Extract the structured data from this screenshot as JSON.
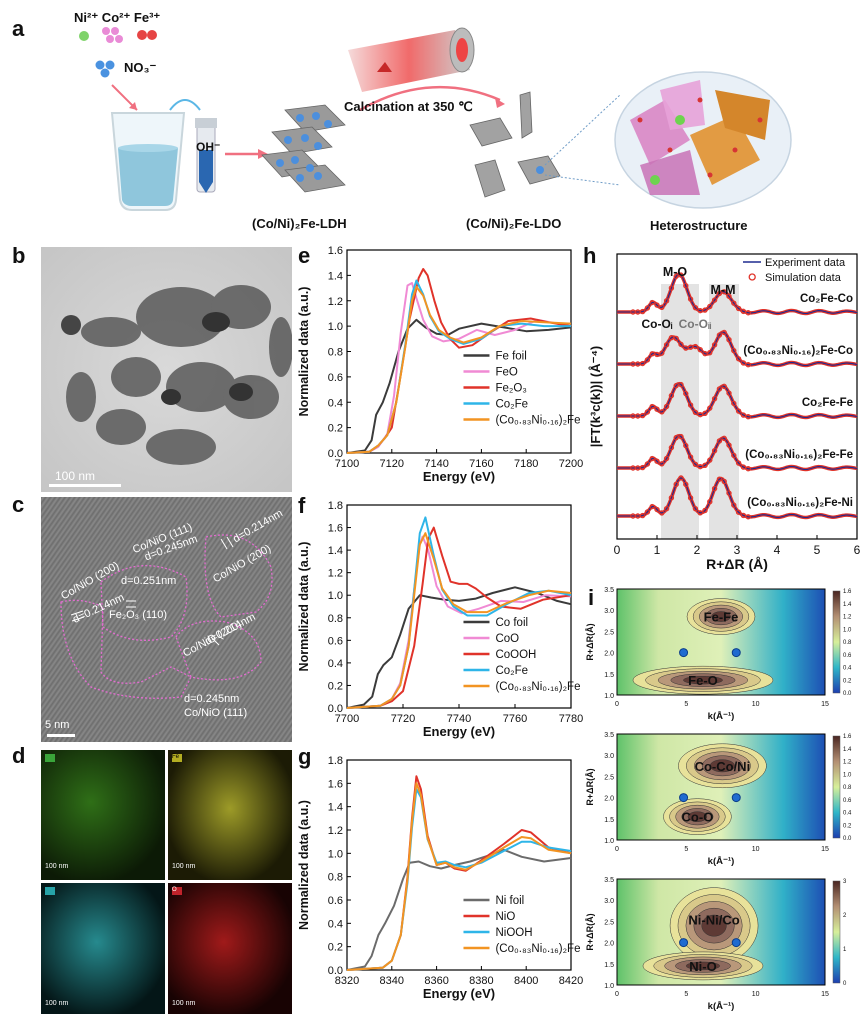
{
  "panel_a": {
    "label": "a",
    "ions_top": "Ni²⁺ Co²⁺ Fe³⁺",
    "nitrate": "NO₃⁻",
    "hydroxide": "OH⁻",
    "calcination": "Calcination at 350 ℃",
    "ldh": "(Co/Ni)₂Fe-LDH",
    "ldo": "(Co/Ni)₂Fe-LDO",
    "hetero": "Heterostructure"
  },
  "panel_b": {
    "label": "b",
    "scale": "100 nm"
  },
  "panel_c": {
    "label": "c",
    "scale": "5 nm",
    "ann1": "Co/NiO (200)",
    "ann2": "d=0.214nm",
    "ann3": "Co/NiO (111)",
    "ann4": "d=0.245nm",
    "ann5": "d=0.251nm",
    "ann6": "Fe₂O₃ (110)",
    "ann7": "d=0.214nm",
    "ann8": "Co/NiO (200)",
    "ann9": "d=0.214nm",
    "ann10": "Co/NiO (200)",
    "ann11": "d=0.245nm",
    "ann12": "Co/NiO (111)"
  },
  "panel_d": {
    "label": "d",
    "scale": "100 nm",
    "tag_fe": "Fe",
    "tag_o": "O"
  },
  "panel_e_label": "e",
  "panel_f_label": "f",
  "panel_g_label": "g",
  "panel_h_label": "h",
  "panel_i_label": "i",
  "colors": {
    "gray": "#3b3b3b",
    "pink": "#f08ad4",
    "red": "#e0332a",
    "blue": "#2eb5e8",
    "orange": "#f29422",
    "navy": "#1f2b8f"
  },
  "chart_data": [
    {
      "type": "line",
      "id": "e",
      "xlabel": "Energy (eV)",
      "ylabel": "Normalized data (a.u.)",
      "xlim": [
        7100,
        7200
      ],
      "ylim": [
        0,
        1.6
      ],
      "xticks": [
        7100,
        7120,
        7140,
        7160,
        7180,
        7200
      ],
      "yticks": [
        0.0,
        0.2,
        0.4,
        0.6,
        0.8,
        1.0,
        1.2,
        1.4,
        1.6
      ],
      "legend": "center-right",
      "series": [
        {
          "name": "Fe foil",
          "color": "#3b3b3b",
          "x": [
            7100,
            7108,
            7111,
            7113,
            7116,
            7119,
            7123,
            7127,
            7131,
            7135,
            7140,
            7145,
            7150,
            7160,
            7170,
            7180,
            7190,
            7200
          ],
          "y": [
            0,
            0.02,
            0.1,
            0.3,
            0.4,
            0.55,
            0.8,
            0.98,
            1.05,
            0.99,
            0.94,
            0.93,
            0.98,
            1.02,
            0.99,
            0.96,
            0.97,
            0.99
          ]
        },
        {
          "name": "FeO",
          "color": "#f08ad4",
          "x": [
            7100,
            7110,
            7114,
            7118,
            7121,
            7124,
            7127,
            7129,
            7131,
            7134,
            7138,
            7143,
            7150,
            7158,
            7166,
            7175,
            7185,
            7200
          ],
          "y": [
            0,
            0.01,
            0.05,
            0.15,
            0.45,
            0.95,
            1.32,
            1.34,
            1.22,
            1.05,
            0.92,
            0.88,
            0.9,
            0.97,
            0.93,
            0.97,
            1.05,
            1.0
          ]
        },
        {
          "name": "Fe₂O₃",
          "color": "#e0332a",
          "x": [
            7100,
            7110,
            7114,
            7117,
            7120,
            7124,
            7128,
            7132,
            7134,
            7136,
            7139,
            7142,
            7146,
            7150,
            7156,
            7164,
            7172,
            7182,
            7190,
            7200
          ],
          "y": [
            0,
            0.01,
            0.06,
            0.12,
            0.2,
            0.62,
            1.06,
            1.38,
            1.45,
            1.4,
            1.2,
            1.03,
            0.9,
            0.83,
            0.85,
            0.95,
            1.04,
            1.06,
            1.03,
            1.0
          ]
        },
        {
          "name": "Co₂Fe",
          "color": "#2eb5e8",
          "x": [
            7100,
            7110,
            7114,
            7118,
            7122,
            7126,
            7129,
            7131,
            7134,
            7137,
            7141,
            7146,
            7152,
            7160,
            7168,
            7178,
            7188,
            7200
          ],
          "y": [
            0,
            0.01,
            0.06,
            0.14,
            0.4,
            0.85,
            1.25,
            1.36,
            1.25,
            1.08,
            0.96,
            0.9,
            0.86,
            0.9,
            1.0,
            1.02,
            1.0,
            1.0
          ]
        },
        {
          "name": "(Co₀.₈₃Ni₀.₁₆)₂Fe",
          "color": "#f29422",
          "x": [
            7100,
            7110,
            7114,
            7118,
            7122,
            7126,
            7129,
            7131,
            7134,
            7137,
            7141,
            7146,
            7152,
            7160,
            7168,
            7178,
            7188,
            7200
          ],
          "y": [
            0,
            0.01,
            0.06,
            0.14,
            0.4,
            0.83,
            1.2,
            1.31,
            1.24,
            1.09,
            0.97,
            0.91,
            0.87,
            0.91,
            1.0,
            1.04,
            1.03,
            1.02
          ]
        }
      ]
    },
    {
      "type": "line",
      "id": "f",
      "xlabel": "Energy (eV)",
      "ylabel": "Normalized data (a.u.)",
      "xlim": [
        7700,
        7780
      ],
      "ylim": [
        0,
        1.8
      ],
      "xticks": [
        7700,
        7720,
        7740,
        7760,
        7780
      ],
      "yticks": [
        0.0,
        0.2,
        0.4,
        0.6,
        0.8,
        1.0,
        1.2,
        1.4,
        1.6,
        1.8
      ],
      "legend": "bottom-right",
      "series": [
        {
          "name": "Co foil",
          "color": "#3b3b3b",
          "x": [
            7700,
            7706,
            7709,
            7711,
            7713,
            7716,
            7719,
            7722,
            7726,
            7730,
            7735,
            7740,
            7746,
            7752,
            7760,
            7768,
            7775,
            7780
          ],
          "y": [
            0,
            0.03,
            0.1,
            0.3,
            0.38,
            0.45,
            0.65,
            0.88,
            1.0,
            0.98,
            0.96,
            0.95,
            0.97,
            1.02,
            1.07,
            1.02,
            0.95,
            0.92
          ]
        },
        {
          "name": "CoO",
          "color": "#f08ad4",
          "x": [
            7700,
            7712,
            7716,
            7719,
            7722,
            7724,
            7726,
            7727,
            7729,
            7732,
            7736,
            7741,
            7747,
            7755,
            7763,
            7771,
            7780
          ],
          "y": [
            0,
            0.02,
            0.08,
            0.22,
            0.6,
            1.05,
            1.45,
            1.52,
            1.4,
            1.08,
            0.9,
            0.84,
            0.88,
            0.95,
            0.94,
            1.0,
            0.99
          ]
        },
        {
          "name": "CoOOH",
          "color": "#e0332a",
          "x": [
            7700,
            7712,
            7716,
            7720,
            7724,
            7727,
            7729,
            7731,
            7734,
            7737,
            7740,
            7743,
            7746,
            7750,
            7755,
            7762,
            7770,
            7780
          ],
          "y": [
            0,
            0.02,
            0.06,
            0.15,
            0.55,
            1.1,
            1.5,
            1.6,
            1.35,
            1.12,
            1.1,
            1.1,
            1.06,
            0.98,
            0.9,
            0.88,
            0.96,
            1.0
          ]
        },
        {
          "name": "Co₂Fe",
          "color": "#2eb5e8",
          "x": [
            7700,
            7712,
            7716,
            7719,
            7722,
            7724,
            7726,
            7728,
            7731,
            7734,
            7738,
            7743,
            7750,
            7757,
            7765,
            7772,
            7780
          ],
          "y": [
            0,
            0.02,
            0.08,
            0.2,
            0.55,
            1.05,
            1.55,
            1.69,
            1.35,
            1.05,
            0.9,
            0.82,
            0.82,
            0.92,
            1.02,
            1.04,
            1.0
          ]
        },
        {
          "name": "(Co₀.₈₃Ni₀.₁₆)₂Fe",
          "color": "#f29422",
          "x": [
            7700,
            7712,
            7716,
            7719,
            7722,
            7724,
            7726,
            7728,
            7731,
            7734,
            7738,
            7743,
            7750,
            7757,
            7765,
            7772,
            7780
          ],
          "y": [
            0,
            0.02,
            0.08,
            0.2,
            0.55,
            1.0,
            1.45,
            1.55,
            1.32,
            1.06,
            0.92,
            0.85,
            0.85,
            0.93,
            1.0,
            1.04,
            1.02
          ]
        }
      ]
    },
    {
      "type": "line",
      "id": "g",
      "xlabel": "Energy (eV)",
      "ylabel": "Normalized data (a.u.)",
      "xlim": [
        8320,
        8420
      ],
      "ylim": [
        0,
        1.8
      ],
      "xticks": [
        8320,
        8340,
        8360,
        8380,
        8400,
        8420
      ],
      "yticks": [
        0.0,
        0.2,
        0.4,
        0.6,
        0.8,
        1.0,
        1.2,
        1.4,
        1.6,
        1.8
      ],
      "legend": "bottom-right",
      "series": [
        {
          "name": "Ni foil",
          "color": "#6b6b6b",
          "x": [
            8320,
            8328,
            8331,
            8334,
            8337,
            8341,
            8345,
            8348,
            8352,
            8357,
            8362,
            8368,
            8375,
            8383,
            8390,
            8398,
            8408,
            8420
          ],
          "y": [
            0,
            0.03,
            0.12,
            0.3,
            0.4,
            0.55,
            0.78,
            0.92,
            0.93,
            0.89,
            0.87,
            0.9,
            0.93,
            0.98,
            1.03,
            0.97,
            0.93,
            0.96
          ]
        },
        {
          "name": "NiO",
          "color": "#e0332a",
          "x": [
            8320,
            8336,
            8340,
            8344,
            8347,
            8349,
            8351,
            8353,
            8356,
            8360,
            8364,
            8368,
            8373,
            8380,
            8390,
            8398,
            8402,
            8410,
            8420
          ],
          "y": [
            0,
            0.02,
            0.08,
            0.3,
            0.8,
            1.3,
            1.66,
            1.55,
            1.15,
            0.9,
            0.92,
            0.87,
            0.85,
            0.94,
            1.08,
            1.2,
            1.18,
            1.05,
            1.0
          ]
        },
        {
          "name": "NiOOH",
          "color": "#2eb5e8",
          "x": [
            8320,
            8336,
            8340,
            8344,
            8347,
            8349,
            8351,
            8353,
            8356,
            8360,
            8364,
            8368,
            8373,
            8380,
            8390,
            8398,
            8402,
            8410,
            8420
          ],
          "y": [
            0,
            0.02,
            0.08,
            0.3,
            0.75,
            1.22,
            1.55,
            1.48,
            1.12,
            0.92,
            0.93,
            0.9,
            0.88,
            0.92,
            1.02,
            1.1,
            1.1,
            1.05,
            1.02
          ]
        },
        {
          "name": "(Co₀.₈₃Ni₀.₁₆)₂Fe",
          "color": "#f29422",
          "x": [
            8320,
            8336,
            8340,
            8344,
            8347,
            8349,
            8351,
            8353,
            8356,
            8360,
            8364,
            8368,
            8373,
            8380,
            8390,
            8398,
            8402,
            8410,
            8420
          ],
          "y": [
            0,
            0.02,
            0.08,
            0.3,
            0.78,
            1.27,
            1.6,
            1.5,
            1.13,
            0.9,
            0.92,
            0.88,
            0.86,
            0.93,
            1.05,
            1.14,
            1.13,
            1.03,
            1.0
          ]
        }
      ]
    },
    {
      "type": "line",
      "id": "h",
      "xlabel": "R+ΔR (Å)",
      "ylabel": "|FT(k³c(k))| (Å⁻⁴)",
      "xlim": [
        0,
        6
      ],
      "xticks": [
        0,
        1,
        2,
        3,
        4,
        5,
        6
      ],
      "legend": "top-right",
      "legend_entries": [
        "Experiment data",
        "Simulation data"
      ],
      "annotations": [
        "M-O",
        "M-M",
        "Co-Oᵢ",
        "Co-Oᵢᵢ"
      ],
      "traces": [
        {
          "label": "Co₂Fe-Co",
          "peaks": [
            [
              1.55,
              1.0
            ],
            [
              2.65,
              0.55
            ]
          ]
        },
        {
          "label": "(Co₀.₈₃Ni₀.₁₆)₂Fe-Co",
          "peaks": [
            [
              1.4,
              0.7
            ],
            [
              1.95,
              0.45
            ],
            [
              2.65,
              0.85
            ]
          ]
        },
        {
          "label": "Co₂Fe-Fe",
          "peaks": [
            [
              1.55,
              0.85
            ],
            [
              2.65,
              0.8
            ]
          ]
        },
        {
          "label": "(Co₀.₈₃Ni₀.₁₆)₂Fe-Fe",
          "peaks": [
            [
              1.55,
              0.85
            ],
            [
              2.65,
              0.8
            ]
          ]
        },
        {
          "label": "(Co₀.₈₃Ni₀.₁₆)₂Fe-Ni",
          "peaks": [
            [
              1.6,
              1.0
            ],
            [
              2.6,
              1.0
            ]
          ]
        }
      ]
    },
    {
      "type": "heatmap",
      "id": "i",
      "xlabel": "k(Å⁻¹)",
      "ylabel": "R+ΔR(Å)",
      "xlim": [
        0,
        15
      ],
      "ylim": [
        1.0,
        3.5
      ],
      "xticks": [
        0,
        5,
        10,
        15
      ],
      "yticks": [
        1.0,
        1.5,
        2.0,
        2.5,
        3.0,
        3.5
      ],
      "maps": [
        {
          "peaks": [
            "Fe-Fe",
            "Fe-O"
          ],
          "colorbar": [
            "0.0",
            "0.2",
            "0.4",
            "0.6",
            "0.8",
            "1.0",
            "1.2",
            "1.4",
            "1.6"
          ]
        },
        {
          "peaks": [
            "Co-Co/Ni",
            "Co-O"
          ],
          "colorbar": [
            "0.0",
            "0.2",
            "0.4",
            "0.6",
            "0.8",
            "1.0",
            "1.2",
            "1.4",
            "1.6"
          ]
        },
        {
          "peaks": [
            "Ni-Ni/Co",
            "Ni-O"
          ],
          "colorbar": [
            "0",
            "1",
            "2",
            "3"
          ]
        }
      ]
    }
  ]
}
